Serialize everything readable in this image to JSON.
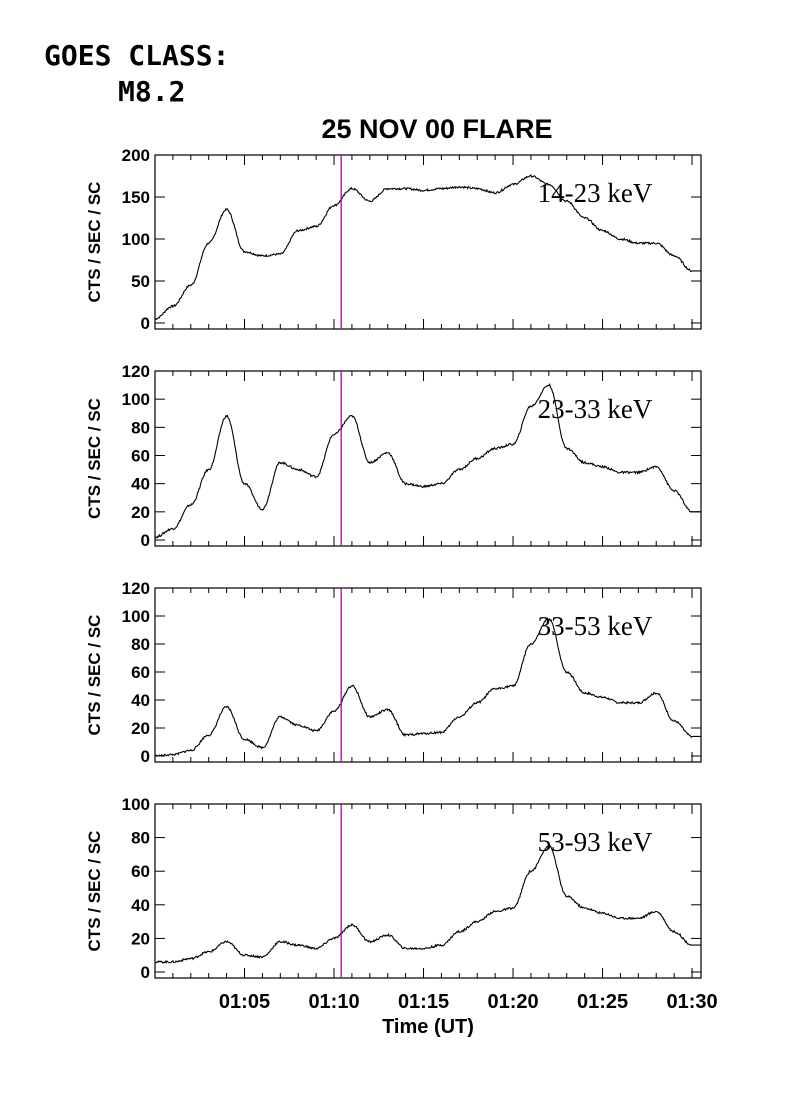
{
  "header": {
    "goes_class_label": "GOES CLASS:",
    "goes_class_value": "M8.2"
  },
  "chart_data": {
    "type": "line",
    "title": "25 NOV 00 FLARE",
    "xlabel": "Time (UT)",
    "x_ticks": [
      "01:05",
      "01:10",
      "01:15",
      "01:20",
      "01:25",
      "01:30"
    ],
    "marker_time": "01:10.4",
    "marker_color": "#b000b0",
    "line_color": "#000000",
    "panels": [
      {
        "name": "14-23 keV",
        "ylabel": "CTS / SEC / SC",
        "ylim": [
          0,
          200
        ],
        "yticks": [
          "0",
          "50",
          "100",
          "150",
          "200"
        ],
        "x_min": [
          0,
          1,
          2,
          3,
          4,
          5,
          6,
          7,
          8,
          9,
          10,
          11,
          12,
          13,
          14,
          15,
          16,
          17,
          18,
          19,
          20,
          21,
          22,
          23,
          24,
          25,
          26,
          27,
          28,
          29,
          30
        ],
        "values": [
          5,
          20,
          45,
          95,
          135,
          85,
          80,
          82,
          110,
          115,
          140,
          160,
          145,
          160,
          160,
          158,
          160,
          162,
          160,
          155,
          165,
          175,
          165,
          145,
          125,
          110,
          100,
          95,
          95,
          80,
          62
        ]
      },
      {
        "name": "23-33 keV",
        "ylabel": "CTS / SEC / SC",
        "ylim": [
          0,
          120
        ],
        "yticks": [
          "0",
          "20",
          "40",
          "60",
          "80",
          "100",
          "120"
        ],
        "x_min": [
          0,
          1,
          2,
          3,
          4,
          5,
          6,
          7,
          8,
          9,
          10,
          11,
          12,
          13,
          14,
          15,
          16,
          17,
          18,
          19,
          20,
          21,
          22,
          23,
          24,
          25,
          26,
          27,
          28,
          29,
          30
        ],
        "values": [
          2,
          8,
          25,
          50,
          88,
          40,
          22,
          55,
          50,
          45,
          75,
          88,
          55,
          62,
          40,
          38,
          40,
          50,
          58,
          65,
          68,
          95,
          110,
          65,
          55,
          52,
          48,
          48,
          52,
          35,
          20
        ]
      },
      {
        "name": "33-53 keV",
        "ylabel": "CTS / SEC / SC",
        "ylim": [
          0,
          120
        ],
        "yticks": [
          "0",
          "20",
          "40",
          "60",
          "80",
          "100",
          "120"
        ],
        "x_min": [
          0,
          1,
          2,
          3,
          4,
          5,
          6,
          7,
          8,
          9,
          10,
          11,
          12,
          13,
          14,
          15,
          16,
          17,
          18,
          19,
          20,
          21,
          22,
          23,
          24,
          25,
          26,
          27,
          28,
          29,
          30
        ],
        "values": [
          0,
          1,
          4,
          15,
          35,
          12,
          6,
          28,
          22,
          18,
          32,
          50,
          28,
          33,
          15,
          16,
          17,
          28,
          38,
          48,
          50,
          80,
          98,
          60,
          45,
          42,
          38,
          38,
          45,
          25,
          14
        ]
      },
      {
        "name": "53-93 keV",
        "ylabel": "CTS / SEC / SC",
        "ylim": [
          0,
          100
        ],
        "yticks": [
          "0",
          "20",
          "40",
          "60",
          "80",
          "100"
        ],
        "x_min": [
          0,
          1,
          2,
          3,
          4,
          5,
          6,
          7,
          8,
          9,
          10,
          11,
          12,
          13,
          14,
          15,
          16,
          17,
          18,
          19,
          20,
          21,
          22,
          23,
          24,
          25,
          26,
          27,
          28,
          29,
          30
        ],
        "values": [
          6,
          6,
          8,
          12,
          18,
          10,
          9,
          18,
          16,
          14,
          20,
          28,
          18,
          22,
          14,
          14,
          16,
          24,
          30,
          36,
          38,
          60,
          75,
          45,
          38,
          35,
          32,
          32,
          36,
          24,
          16
        ]
      }
    ]
  }
}
